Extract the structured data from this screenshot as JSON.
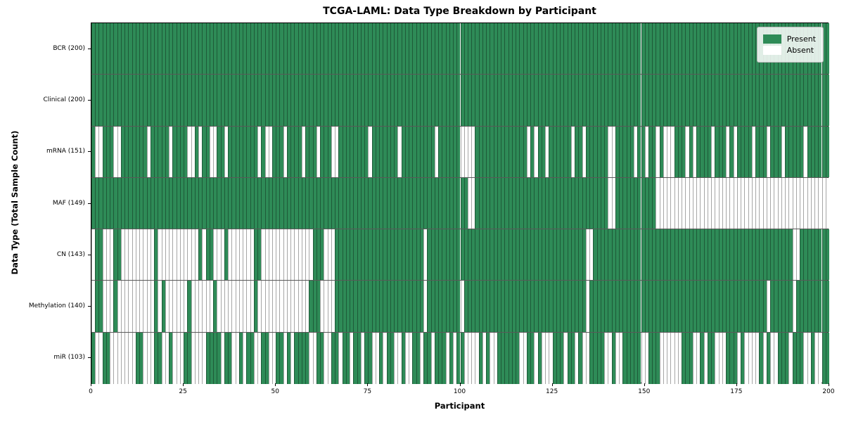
{
  "title": "TCGA-LAML: Data Type Breakdown by Participant",
  "xlabel": "Participant",
  "ylabel": "Data Type (Total Sample Count)",
  "legend": {
    "present_label": "Present",
    "absent_label": "Absent"
  },
  "colors": {
    "present": "#2e8b57",
    "absent": "#ffffff",
    "cell_edge": "rgba(0,0,0,0.35)",
    "row_edge": "rgba(0,0,0,0.65)"
  },
  "chart_data": {
    "type": "heatmap",
    "x_axis": {
      "label": "Participant",
      "range": [
        0,
        200
      ],
      "ticks": [
        0,
        25,
        50,
        75,
        100,
        125,
        150,
        175,
        200
      ]
    },
    "n_participants": 200,
    "legend_position": "upper right",
    "rows": [
      {
        "label": "BCR (200)",
        "name": "BCR",
        "present_total": 200,
        "absent_ranges": []
      },
      {
        "label": "Clinical (200)",
        "name": "Clinical",
        "present_total": 200,
        "absent_ranges": []
      },
      {
        "label": "mRNA (151)",
        "name": "mRNA",
        "present_total": 151,
        "absent_ranges": [
          [
            1,
            2
          ],
          [
            6,
            7
          ],
          [
            15,
            15
          ],
          [
            21,
            21
          ],
          [
            26,
            27
          ],
          [
            29,
            29
          ],
          [
            32,
            33
          ],
          [
            36,
            36
          ],
          [
            45,
            45
          ],
          [
            47,
            48
          ],
          [
            52,
            52
          ],
          [
            57,
            57
          ],
          [
            61,
            61
          ],
          [
            65,
            66
          ],
          [
            75,
            75
          ],
          [
            83,
            83
          ],
          [
            93,
            93
          ],
          [
            100,
            103
          ],
          [
            118,
            118
          ],
          [
            120,
            120
          ],
          [
            123,
            123
          ],
          [
            130,
            130
          ],
          [
            133,
            133
          ],
          [
            140,
            141
          ],
          [
            147,
            147
          ],
          [
            150,
            150
          ],
          [
            153,
            153
          ],
          [
            155,
            157
          ],
          [
            161,
            161
          ],
          [
            163,
            163
          ],
          [
            168,
            168
          ],
          [
            172,
            172
          ],
          [
            174,
            174
          ],
          [
            179,
            179
          ],
          [
            183,
            183
          ],
          [
            187,
            187
          ],
          [
            193,
            193
          ]
        ]
      },
      {
        "label": "MAF (149)",
        "name": "MAF",
        "present_total": 149,
        "absent_ranges": [
          [
            102,
            103
          ],
          [
            140,
            141
          ],
          [
            153,
            199
          ]
        ]
      },
      {
        "label": "CN (143)",
        "name": "CN",
        "present_total": 143,
        "absent_ranges": [
          [
            0,
            0
          ],
          [
            3,
            5
          ],
          [
            8,
            16
          ],
          [
            18,
            28
          ],
          [
            30,
            30
          ],
          [
            33,
            35
          ],
          [
            37,
            43
          ],
          [
            46,
            59
          ],
          [
            63,
            65
          ],
          [
            90,
            90
          ],
          [
            134,
            135
          ],
          [
            190,
            191
          ]
        ]
      },
      {
        "label": "Methylation (140)",
        "name": "Methylation",
        "present_total": 140,
        "absent_ranges": [
          [
            0,
            0
          ],
          [
            3,
            5
          ],
          [
            7,
            16
          ],
          [
            18,
            18
          ],
          [
            20,
            25
          ],
          [
            27,
            32
          ],
          [
            34,
            43
          ],
          [
            45,
            58
          ],
          [
            62,
            65
          ],
          [
            90,
            90
          ],
          [
            100,
            100
          ],
          [
            134,
            134
          ],
          [
            183,
            183
          ],
          [
            190,
            190
          ]
        ]
      },
      {
        "label": "miR (103)",
        "name": "miR",
        "present_total": 103,
        "absent_ranges": [
          [
            1,
            2
          ],
          [
            5,
            11
          ],
          [
            14,
            16
          ],
          [
            19,
            20
          ],
          [
            22,
            24
          ],
          [
            27,
            30
          ],
          [
            35,
            35
          ],
          [
            38,
            39
          ],
          [
            41,
            41
          ],
          [
            44,
            45
          ],
          [
            48,
            49
          ],
          [
            52,
            52
          ],
          [
            54,
            54
          ],
          [
            59,
            60
          ],
          [
            63,
            64
          ],
          [
            67,
            67
          ],
          [
            70,
            70
          ],
          [
            73,
            73
          ],
          [
            76,
            77
          ],
          [
            79,
            79
          ],
          [
            82,
            83
          ],
          [
            85,
            86
          ],
          [
            89,
            89
          ],
          [
            92,
            92
          ],
          [
            96,
            96
          ],
          [
            98,
            98
          ],
          [
            101,
            104
          ],
          [
            106,
            106
          ],
          [
            108,
            109
          ],
          [
            116,
            117
          ],
          [
            120,
            120
          ],
          [
            122,
            124
          ],
          [
            128,
            128
          ],
          [
            131,
            131
          ],
          [
            133,
            134
          ],
          [
            139,
            140
          ],
          [
            142,
            143
          ],
          [
            149,
            150
          ],
          [
            154,
            159
          ],
          [
            163,
            164
          ],
          [
            166,
            166
          ],
          [
            169,
            171
          ],
          [
            175,
            175
          ],
          [
            177,
            180
          ],
          [
            182,
            182
          ],
          [
            184,
            185
          ],
          [
            189,
            189
          ],
          [
            193,
            194
          ],
          [
            196,
            197
          ]
        ]
      }
    ]
  }
}
